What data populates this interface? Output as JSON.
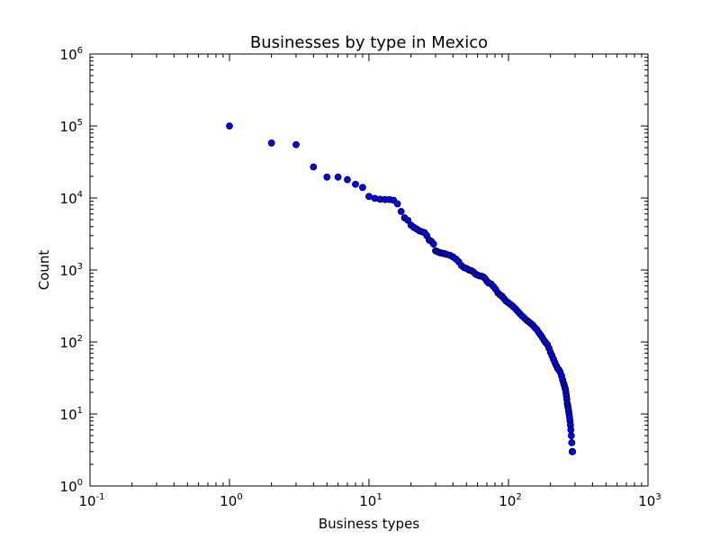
{
  "chart_data": {
    "type": "scatter",
    "title": "Businesses by type in Mexico",
    "xlabel": "Business types",
    "ylabel": "Count",
    "xscale": "log",
    "yscale": "log",
    "xlim": [
      0.1,
      1000
    ],
    "ylim": [
      1,
      1000000
    ],
    "grid": false,
    "legend": "none",
    "marker_color": "#0000ff",
    "marker_edge_color": "#000000",
    "x_ticks": [
      {
        "base": "10",
        "exp": "-1",
        "value": 0.1
      },
      {
        "base": "10",
        "exp": "0",
        "value": 1
      },
      {
        "base": "10",
        "exp": "1",
        "value": 10
      },
      {
        "base": "10",
        "exp": "2",
        "value": 100
      },
      {
        "base": "10",
        "exp": "3",
        "value": 1000
      }
    ],
    "y_ticks": [
      {
        "base": "10",
        "exp": "0",
        "value": 1
      },
      {
        "base": "10",
        "exp": "1",
        "value": 10
      },
      {
        "base": "10",
        "exp": "2",
        "value": 100
      },
      {
        "base": "10",
        "exp": "3",
        "value": 1000
      },
      {
        "base": "10",
        "exp": "4",
        "value": 10000
      },
      {
        "base": "10",
        "exp": "5",
        "value": 100000
      },
      {
        "base": "10",
        "exp": "6",
        "value": 1000000
      }
    ],
    "points": [
      [
        1,
        100000
      ],
      [
        2,
        58000
      ],
      [
        3,
        55000
      ],
      [
        4,
        27000
      ],
      [
        5,
        19500
      ],
      [
        6,
        19500
      ],
      [
        7,
        18000
      ],
      [
        8,
        15500
      ],
      [
        9,
        14000
      ],
      [
        10,
        10500
      ],
      [
        11,
        9900
      ],
      [
        12,
        9600
      ],
      [
        13,
        9500
      ],
      [
        14,
        9500
      ],
      [
        15,
        9300
      ],
      [
        16,
        8300
      ],
      [
        17,
        6500
      ],
      [
        18,
        5300
      ],
      [
        19,
        4900
      ],
      [
        20,
        4200
      ],
      [
        21,
        3900
      ],
      [
        22,
        3700
      ],
      [
        23,
        3500
      ],
      [
        24,
        3400
      ],
      [
        25,
        3300
      ],
      [
        26,
        3000
      ],
      [
        27,
        2600
      ],
      [
        28,
        2500
      ],
      [
        29,
        2300
      ],
      [
        30,
        1850
      ],
      [
        31,
        1800
      ],
      [
        32,
        1750
      ],
      [
        33,
        1720
      ],
      [
        34,
        1700
      ],
      [
        35,
        1680
      ],
      [
        36,
        1650
      ],
      [
        38,
        1600
      ],
      [
        40,
        1520
      ],
      [
        42,
        1420
      ],
      [
        44,
        1300
      ],
      [
        46,
        1150
      ],
      [
        48,
        1080
      ],
      [
        50,
        1050
      ],
      [
        52,
        1000
      ],
      [
        54,
        980
      ],
      [
        56,
        940
      ],
      [
        58,
        880
      ],
      [
        60,
        850
      ],
      [
        62,
        830
      ],
      [
        64,
        820
      ],
      [
        66,
        800
      ],
      [
        68,
        760
      ],
      [
        70,
        700
      ],
      [
        72,
        660
      ],
      [
        75,
        640
      ],
      [
        78,
        590
      ],
      [
        81,
        540
      ],
      [
        84,
        480
      ],
      [
        87,
        450
      ],
      [
        90,
        430
      ],
      [
        93,
        400
      ],
      [
        96,
        370
      ],
      [
        100,
        350
      ],
      [
        104,
        330
      ],
      [
        108,
        310
      ],
      [
        112,
        290
      ],
      [
        116,
        270
      ],
      [
        120,
        250
      ],
      [
        125,
        230
      ],
      [
        130,
        215
      ],
      [
        135,
        200
      ],
      [
        140,
        190
      ],
      [
        145,
        180
      ],
      [
        150,
        170
      ],
      [
        155,
        158
      ],
      [
        160,
        148
      ],
      [
        165,
        135
      ],
      [
        170,
        125
      ],
      [
        175,
        115
      ],
      [
        180,
        105
      ],
      [
        185,
        98
      ],
      [
        190,
        92
      ],
      [
        195,
        82
      ],
      [
        200,
        72
      ],
      [
        205,
        65
      ],
      [
        210,
        58
      ],
      [
        215,
        52
      ],
      [
        220,
        47
      ],
      [
        225,
        43
      ],
      [
        230,
        41
      ],
      [
        235,
        38
      ],
      [
        240,
        34
      ],
      [
        244,
        30
      ],
      [
        248,
        27
      ],
      [
        251,
        25
      ],
      [
        254,
        23
      ],
      [
        256,
        22
      ],
      [
        258,
        20
      ],
      [
        260,
        18
      ],
      [
        262,
        16
      ],
      [
        264,
        14
      ],
      [
        266,
        13
      ],
      [
        268,
        12
      ],
      [
        270,
        11
      ],
      [
        272,
        10
      ],
      [
        274,
        9
      ],
      [
        276,
        8
      ],
      [
        278,
        7
      ],
      [
        280,
        6
      ],
      [
        282,
        5
      ],
      [
        284,
        4
      ],
      [
        286,
        3
      ],
      [
        288,
        3
      ]
    ]
  }
}
